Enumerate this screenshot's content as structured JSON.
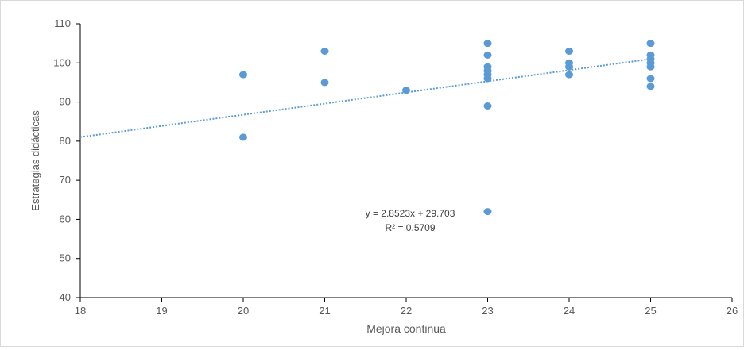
{
  "chart_data": {
    "type": "scatter",
    "title": "",
    "xlabel": "Mejora continua",
    "ylabel": "Estrategias didácticas",
    "xlim": [
      18,
      26
    ],
    "ylim": [
      40,
      110
    ],
    "xticks": [
      "18",
      "19",
      "20",
      "21",
      "22",
      "23",
      "24",
      "25",
      "26"
    ],
    "yticks": [
      "40",
      "50",
      "60",
      "70",
      "80",
      "90",
      "100",
      "110"
    ],
    "grid": false,
    "legend": "none",
    "point_color": "#5B9BD5",
    "trendline_color": "#5B9BD5",
    "series": [
      {
        "points": [
          {
            "x": 20,
            "y": 97
          },
          {
            "x": 20,
            "y": 81
          },
          {
            "x": 21,
            "y": 103
          },
          {
            "x": 21,
            "y": 95
          },
          {
            "x": 22,
            "y": 93
          },
          {
            "x": 23,
            "y": 105
          },
          {
            "x": 23,
            "y": 102
          },
          {
            "x": 23,
            "y": 99
          },
          {
            "x": 23,
            "y": 98
          },
          {
            "x": 23,
            "y": 97
          },
          {
            "x": 23,
            "y": 96
          },
          {
            "x": 23,
            "y": 89
          },
          {
            "x": 23,
            "y": 62
          },
          {
            "x": 24,
            "y": 103
          },
          {
            "x": 24,
            "y": 100
          },
          {
            "x": 24,
            "y": 99
          },
          {
            "x": 24,
            "y": 97
          },
          {
            "x": 25,
            "y": 105
          },
          {
            "x": 25,
            "y": 102
          },
          {
            "x": 25,
            "y": 101
          },
          {
            "x": 25,
            "y": 100
          },
          {
            "x": 25,
            "y": 99
          },
          {
            "x": 25,
            "y": 96
          },
          {
            "x": 25,
            "y": 94
          }
        ]
      }
    ],
    "trendline": {
      "type": "linear",
      "slope": 2.8523,
      "intercept": 29.703,
      "equation_label": "y = 2.8523x + 29.703",
      "r2_label": "R² = 0.5709"
    }
  }
}
